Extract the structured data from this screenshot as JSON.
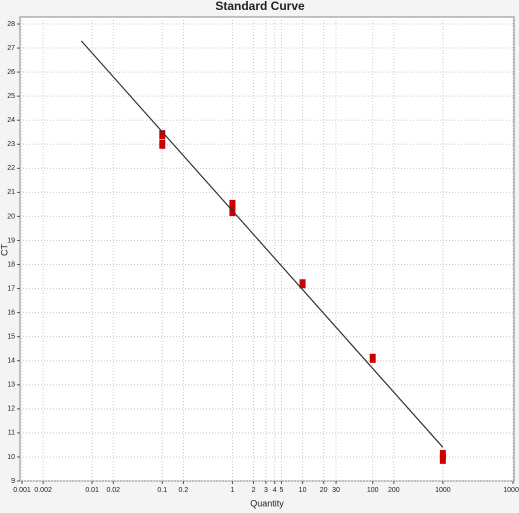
{
  "chart_data": {
    "type": "scatter",
    "title": "Standard Curve",
    "x_label": "Quantity",
    "y_label": "CT",
    "xscale": "log",
    "xlim": [
      0.001,
      10000
    ],
    "ylim": [
      9,
      28
    ],
    "xticks": [
      0.001,
      0.002,
      0.01,
      0.02,
      0.1,
      0.2,
      1,
      2,
      3,
      4,
      5,
      10,
      20,
      30,
      100,
      200,
      1000,
      10000
    ],
    "yticks": [
      9,
      10,
      11,
      12,
      13,
      14,
      15,
      16,
      17,
      18,
      19,
      20,
      21,
      22,
      23,
      24,
      25,
      26,
      27,
      28
    ],
    "grid": true,
    "series": [
      {
        "type": "scatter",
        "color": "#cc0000",
        "x": [
          0.1,
          0.1,
          1,
          1,
          10,
          100,
          1000,
          1000
        ],
        "values": [
          23.0,
          23.4,
          20.2,
          20.5,
          17.2,
          14.1,
          9.9,
          10.1
        ]
      },
      {
        "type": "line",
        "color": "#333333",
        "x": [
          0.007,
          1000
        ],
        "values": [
          27.3,
          10.4
        ]
      }
    ]
  }
}
